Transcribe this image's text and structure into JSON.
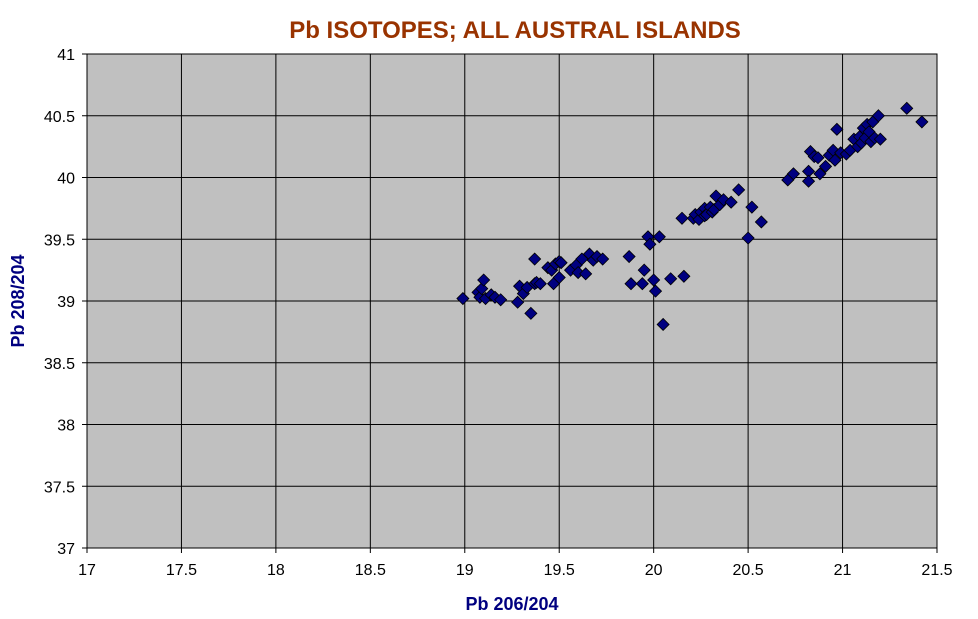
{
  "chart_data": {
    "type": "scatter",
    "title": "Pb ISOTOPES; ALL AUSTRAL ISLANDS",
    "xlabel": "Pb 206/204",
    "ylabel": "Pb 208/204",
    "xlim": [
      17,
      21.5
    ],
    "ylim": [
      37,
      41
    ],
    "xticks": [
      "17",
      "17.5",
      "18",
      "18.5",
      "19",
      "19.5",
      "20",
      "20.5",
      "21",
      "21.5"
    ],
    "yticks": [
      "37",
      "37.5",
      "38",
      "38.5",
      "39",
      "39.5",
      "40",
      "40.5",
      "41"
    ],
    "grid": true,
    "legend": "none",
    "marker": "diamond",
    "colors": {
      "title": "#993300",
      "axis_title": "#000080",
      "marker_fill": "#000080",
      "marker_edge": "#000000",
      "plot_background": "#C0C0C0",
      "grid": "#000000"
    },
    "x": [
      18.99,
      19.07,
      19.08,
      19.09,
      19.1,
      19.11,
      19.14,
      19.16,
      19.19,
      19.28,
      19.29,
      19.31,
      19.33,
      19.35,
      19.37,
      19.37,
      19.38,
      19.4,
      19.44,
      19.46,
      19.47,
      19.48,
      19.5,
      19.5,
      19.51,
      19.56,
      19.59,
      19.6,
      19.62,
      19.64,
      19.66,
      19.68,
      19.7,
      19.73,
      19.87,
      19.88,
      19.94,
      19.95,
      19.97,
      19.98,
      20.0,
      20.01,
      20.03,
      20.05,
      20.09,
      20.15,
      20.16,
      20.21,
      20.22,
      20.24,
      20.25,
      20.27,
      20.27,
      20.28,
      20.3,
      20.31,
      20.32,
      20.33,
      20.35,
      20.37,
      20.41,
      20.45,
      20.5,
      20.52,
      20.57,
      20.71,
      20.74,
      20.82,
      20.82,
      20.83,
      20.85,
      20.87,
      20.88,
      20.91,
      20.93,
      20.95,
      20.96,
      20.97,
      20.99,
      21.02,
      21.04,
      21.06,
      21.08,
      21.09,
      21.1,
      21.11,
      21.12,
      21.13,
      21.14,
      21.15,
      21.16,
      21.17,
      21.19,
      21.2,
      21.34,
      21.42
    ],
    "y": [
      39.02,
      39.07,
      39.03,
      39.1,
      39.17,
      39.02,
      39.05,
      39.03,
      39.01,
      38.99,
      39.12,
      39.06,
      39.11,
      38.9,
      39.34,
      39.14,
      39.15,
      39.14,
      39.27,
      39.25,
      39.14,
      39.3,
      39.19,
      39.32,
      39.31,
      39.25,
      39.29,
      39.23,
      39.34,
      39.22,
      39.38,
      39.33,
      39.36,
      39.34,
      39.36,
      39.14,
      39.14,
      39.25,
      39.52,
      39.46,
      39.17,
      39.08,
      39.52,
      38.81,
      39.18,
      39.67,
      39.2,
      39.67,
      39.7,
      39.66,
      39.72,
      39.75,
      39.69,
      39.7,
      39.76,
      39.72,
      39.74,
      39.85,
      39.78,
      39.82,
      39.8,
      39.9,
      39.51,
      39.76,
      39.64,
      39.98,
      40.03,
      40.05,
      39.97,
      40.21,
      40.17,
      40.16,
      40.03,
      40.09,
      40.18,
      40.22,
      40.14,
      40.39,
      40.2,
      40.19,
      40.22,
      40.31,
      40.25,
      40.33,
      40.28,
      40.4,
      40.32,
      40.43,
      40.37,
      40.29,
      40.45,
      40.32,
      40.5,
      40.31,
      40.56,
      40.45
    ]
  }
}
